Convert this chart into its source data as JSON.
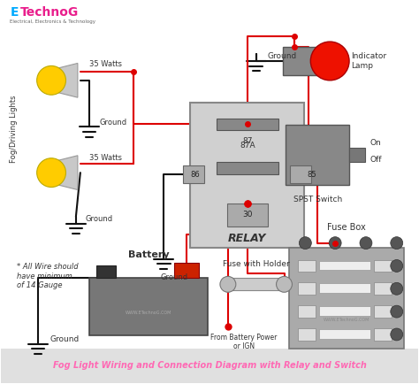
{
  "title": "Fog Light Wiring and Connection Diagram with Relay and Switch",
  "title_color": "#FF69B4",
  "bg_color": "#ffffff",
  "relay_label": "RELAY",
  "battery_label": "Battery",
  "fuse_label": "Fuse with Holder",
  "fuse_box_label": "Fuse Box",
  "indicator_label": "Indicator\nLamp",
  "switch_label": "SPST Switch",
  "switch_on": "On",
  "switch_off": "Off",
  "fog_label": "Fog/Driving Lights",
  "watts1": "35 Watts",
  "watts2": "35 Watts",
  "ground_label": "Ground",
  "note": "* All Wire should\nhave minimum\nof 14 Gauge",
  "from_battery": "From Battery Power\nor IGN",
  "wire_red": "#dd0000",
  "wire_black": "#111111",
  "lamp_red": "#ee1100",
  "lamp_yellow": "#ffcc00",
  "watermark": "WWW.ETechnoG.COM"
}
